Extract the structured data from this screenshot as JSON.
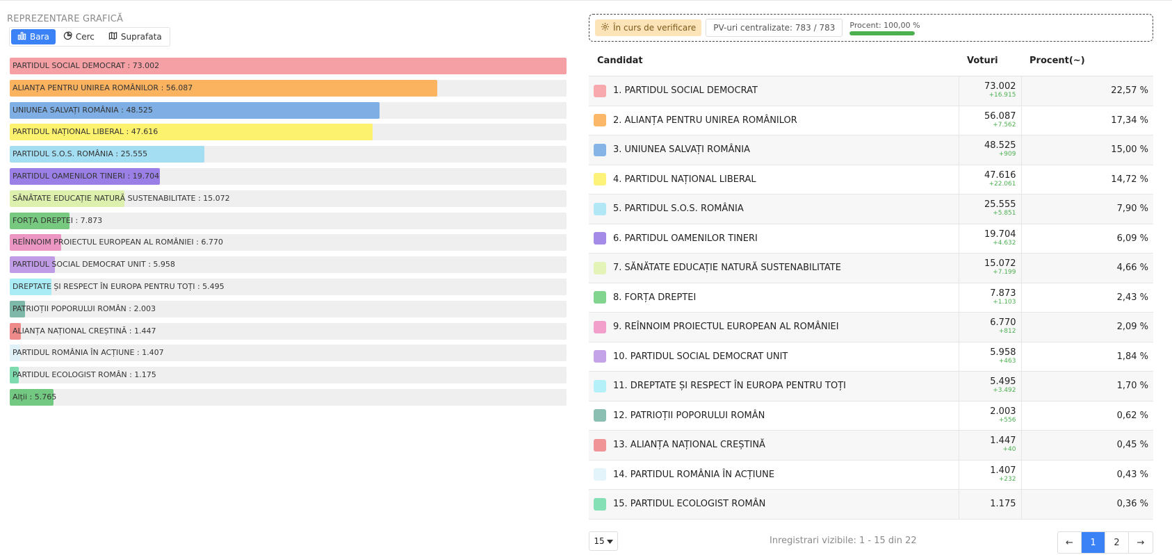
{
  "left": {
    "title": "REPREZENTARE GRAFICĂ",
    "tabs": [
      {
        "label": "Bara",
        "icon": "bar-chart-icon",
        "active": true
      },
      {
        "label": "Cerc",
        "icon": "pie-chart-icon",
        "active": false
      },
      {
        "label": "Suprafata",
        "icon": "map-icon",
        "active": false
      }
    ]
  },
  "chart_data": {
    "type": "bar",
    "orientation": "horizontal",
    "max": 73002,
    "categories": [
      "PARTIDUL SOCIAL DEMOCRAT",
      "ALIANȚA PENTRU UNIREA ROMÂNILOR",
      "UNIUNEA SALVAȚI ROMÂNIA",
      "PARTIDUL NAȚIONAL LIBERAL",
      "PARTIDUL S.O.S. ROMÂNIA",
      "PARTIDUL OAMENILOR TINERI",
      "SĂNĂTATE EDUCAȚIE NATURĂ SUSTENABILITATE",
      "FORȚA DREPTEI",
      "REÎNNOIM PROIECTUL EUROPEAN AL ROMÂNIEI",
      "PARTIDUL SOCIAL DEMOCRAT UNIT",
      "DREPTATE ȘI RESPECT ÎN EUROPA PENTRU TOȚI",
      "PATRIOȚII POPORULUI ROMÂN",
      "ALIANȚA NAȚIONAL CREȘTINĂ",
      "PARTIDUL ROMÂNIA ÎN ACȚIUNE",
      "PARTIDUL ECOLOGIST ROMÂN",
      "Alții"
    ],
    "values": [
      73002,
      56087,
      48525,
      47616,
      25555,
      19704,
      15072,
      7873,
      6770,
      5958,
      5495,
      2003,
      1447,
      1407,
      1175,
      5765
    ],
    "labels": [
      "PARTIDUL SOCIAL DEMOCRAT : 73.002",
      "ALIANȚA PENTRU UNIREA ROMÂNILOR : 56.087",
      "UNIUNEA SALVAȚI ROMÂNIA : 48.525",
      "PARTIDUL NAȚIONAL LIBERAL : 47.616",
      "PARTIDUL S.O.S. ROMÂNIA : 25.555",
      "PARTIDUL OAMENILOR TINERI : 19.704",
      "SĂNĂTATE EDUCAȚIE NATURĂ SUSTENABILITATE : 15.072",
      "FORȚA DREPTEI : 7.873",
      "REÎNNOIM PROIECTUL EUROPEAN AL ROMÂNIEI : 6.770",
      "PARTIDUL SOCIAL DEMOCRAT UNIT : 5.958",
      "DREPTATE ȘI RESPECT ÎN EUROPA PENTRU TOȚI : 5.495",
      "PATRIOȚII POPORULUI ROMÂN : 2.003",
      "ALIANȚA NAȚIONAL CREȘTINĂ : 1.447",
      "PARTIDUL ROMÂNIA ÎN ACȚIUNE : 1.407",
      "PARTIDUL ECOLOGIST ROMÂN : 1.175",
      "Alții : 5.765"
    ],
    "colors": [
      "#f4a0a5",
      "#fbb360",
      "#7eaee3",
      "#fdf26e",
      "#a4def2",
      "#9a80e6",
      "#def0ad",
      "#76c97e",
      "#ec96c4",
      "#c09be6",
      "#a9ecf6",
      "#7db8a8",
      "#ee8a8a",
      "#e0f2f8",
      "#7edbb0",
      "#74c982"
    ]
  },
  "status": {
    "verif_label": "În curs de verificare",
    "pv_label": "PV-uri centralizate: 783 / 783",
    "percent_label": "Procent: 100,00 %",
    "percent_value": 100
  },
  "table": {
    "headers": {
      "candidate": "Candidat",
      "votes": "Voturi",
      "percent": "Procent(~)"
    },
    "rows": [
      {
        "name": "1. PARTIDUL SOCIAL DEMOCRAT",
        "votes": "73.002",
        "delta": "+16.915",
        "percent": "22,57 %",
        "color": "#f8a9ad"
      },
      {
        "name": "2. ALIANȚA PENTRU UNIREA ROMÂNILOR",
        "votes": "56.087",
        "delta": "+7.562",
        "percent": "17,34 %",
        "color": "#fbb869"
      },
      {
        "name": "3. UNIUNEA SALVAȚI ROMÂNIA",
        "votes": "48.525",
        "delta": "+909",
        "percent": "15,00 %",
        "color": "#87b4e6"
      },
      {
        "name": "4. PARTIDUL NAȚIONAL LIBERAL",
        "votes": "47.616",
        "delta": "+22.061",
        "percent": "14,72 %",
        "color": "#fdf27a"
      },
      {
        "name": "5. PARTIDUL S.O.S. ROMÂNIA",
        "votes": "25.555",
        "delta": "+5.851",
        "percent": "7,90 %",
        "color": "#b2e7f6"
      },
      {
        "name": "6. PARTIDUL OAMENILOR TINERI",
        "votes": "19.704",
        "delta": "+4.632",
        "percent": "6,09 %",
        "color": "#a48be8"
      },
      {
        "name": "7. SĂNĂTATE EDUCAȚIE NATURĂ SUSTENABILITATE",
        "votes": "15.072",
        "delta": "+7.199",
        "percent": "4,66 %",
        "color": "#e4f4b8"
      },
      {
        "name": "8. FORȚA DREPTEI",
        "votes": "7.873",
        "delta": "+1.103",
        "percent": "2,43 %",
        "color": "#82d58e"
      },
      {
        "name": "9. REÎNNOIM PROIECTUL EUROPEAN AL ROMÂNIEI",
        "votes": "6.770",
        "delta": "+812",
        "percent": "2,09 %",
        "color": "#f29fcc"
      },
      {
        "name": "10. PARTIDUL SOCIAL DEMOCRAT UNIT",
        "votes": "5.958",
        "delta": "+463",
        "percent": "1,84 %",
        "color": "#c4a3e8"
      },
      {
        "name": "11. DREPTATE ȘI RESPECT ÎN EUROPA PENTRU TOȚI",
        "votes": "5.495",
        "delta": "+3.492",
        "percent": "1,70 %",
        "color": "#b3f0f8"
      },
      {
        "name": "12. PATRIOȚII POPORULUI ROMÂN",
        "votes": "2.003",
        "delta": "+556",
        "percent": "0,62 %",
        "color": "#8bbfb2"
      },
      {
        "name": "13. ALIANȚA NAȚIONAL CREȘTINĂ",
        "votes": "1.447",
        "delta": "+40",
        "percent": "0,45 %",
        "color": "#f09498"
      },
      {
        "name": "14. PARTIDUL ROMÂNIA ÎN ACȚIUNE",
        "votes": "1.407",
        "delta": "+232",
        "percent": "0,43 %",
        "color": "#e3f4fa"
      },
      {
        "name": "15. PARTIDUL ECOLOGIST ROMÂN",
        "votes": "1.175",
        "delta": "",
        "percent": "0,36 %",
        "color": "#86e0b6"
      }
    ]
  },
  "footer": {
    "page_size": "15",
    "records_label": "Inregistrari vizibile: 1 - 15 din 22",
    "pager": {
      "prev": "←",
      "pages": [
        "1",
        "2"
      ],
      "current": "1",
      "next": "→"
    }
  }
}
